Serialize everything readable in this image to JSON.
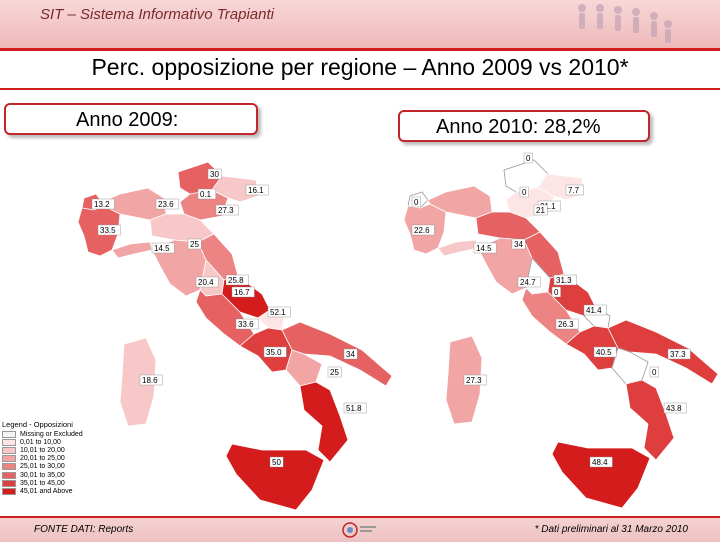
{
  "header": {
    "title": "SIT – Sistema Informativo Trapianti"
  },
  "slide_title": "Perc. opposizione per regione – Anno 2009 vs 2010*",
  "boxes": {
    "y2009": "Anno 2009:",
    "y2010": "Anno 2010: 28,2%"
  },
  "map2009_labels": [
    "30",
    "16.1",
    "0.1",
    "27.3",
    "23.6",
    "13.2",
    "33.5",
    "14.5",
    "25",
    "20.4",
    "25.8",
    "16.7",
    "52.1",
    "33.6",
    "35.0",
    "34",
    "25",
    "18.6",
    "51.8",
    "50"
  ],
  "map2010_labels": [
    "0",
    "7.7",
    "0",
    "21.1",
    "0",
    "22.6",
    "21",
    "14.5",
    "34",
    "24.7",
    "31.3",
    "0",
    "41.4",
    "26.3",
    "40.5",
    "37.3",
    "0",
    "27.3",
    "43.8",
    "48.4"
  ],
  "legend": {
    "title": "Legend - Opposizioni",
    "items": [
      {
        "label": "Missing or Excluded",
        "color": "#f4f4f4"
      },
      {
        "label": "0,01 to 10,00",
        "color": "#fde5e5"
      },
      {
        "label": "10,01 to 20,00",
        "color": "#f8c8c8"
      },
      {
        "label": "20,01 to 25,00",
        "color": "#f2a5a5"
      },
      {
        "label": "25,01 to 30,00",
        "color": "#ec8484"
      },
      {
        "label": "30,01 to 35,00",
        "color": "#e66262"
      },
      {
        "label": "35,01 to 45,00",
        "color": "#df3e3e"
      },
      {
        "label": "45,01 and Above",
        "color": "#d41c1c"
      }
    ]
  },
  "footer": {
    "left": "FONTE DATI: Reports",
    "right": "* Dati preliminari al 31 Marzo 2010"
  },
  "colors": {
    "accent": "#d21f1f"
  }
}
